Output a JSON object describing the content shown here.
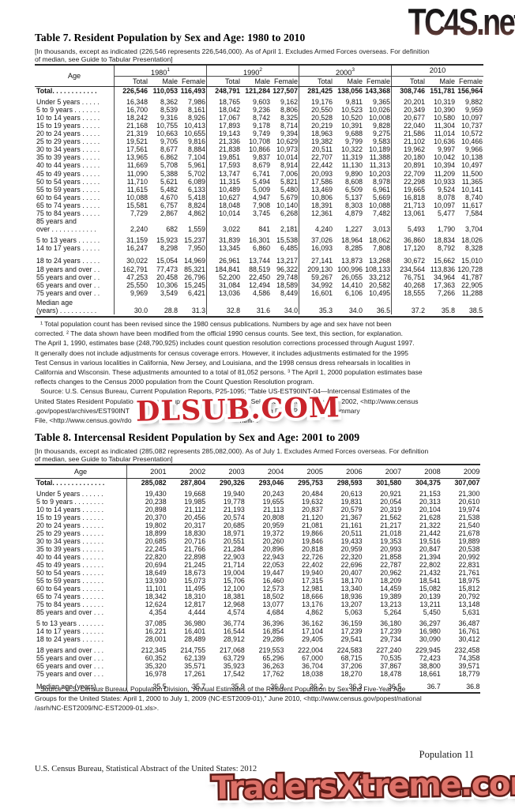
{
  "watermarks": {
    "top": "TC4S.net",
    "middle": "DLSUB.COM",
    "bottom": "TradersXtreme.com"
  },
  "table7": {
    "title": "Table 7. Resident Population by Sex and Age: 1980 to 2010",
    "note_lines": [
      "[In thousands, except as indicated (226,546 represents 226,546,000). As of April 1. Excludes Armed Forces overseas. For definition",
      "of median, see Guide to Tabular Presentation]"
    ],
    "age_header": "Age",
    "year_groups": [
      {
        "year": "1980",
        "sup": "1"
      },
      {
        "year": "1990",
        "sup": "2"
      },
      {
        "year": "2000",
        "sup": "3"
      },
      {
        "year": "2010",
        "sup": ""
      }
    ],
    "sub_headers": [
      "Total",
      "Male",
      "Female"
    ],
    "rows": [
      {
        "label": "Total. . . . . . . . . . . .",
        "bold": true,
        "values": [
          "226,546",
          "110,053",
          "116,493",
          "248,791",
          "121,284",
          "127,507",
          "281,425",
          "138,056",
          "143,368",
          "308,746",
          "151,781",
          "156,964"
        ]
      },
      {
        "label": "Under 5 years . . . . .",
        "gap": "g4",
        "values": [
          "16,348",
          "8,362",
          "7,986",
          "18,765",
          "9,603",
          "9,162",
          "19,176",
          "9,811",
          "9,365",
          "20,201",
          "10,319",
          "9,882"
        ]
      },
      {
        "label": "5 to 9 years . . . . . . .",
        "values": [
          "16,700",
          "8,539",
          "8,161",
          "18,042",
          "9,236",
          "8,806",
          "20,550",
          "10,523",
          "10,026",
          "20,349",
          "10,390",
          "9,959"
        ]
      },
      {
        "label": "10 to 14 years . . . . .",
        "values": [
          "18,242",
          "9,316",
          "8,926",
          "17,067",
          "8,742",
          "8,325",
          "20,528",
          "10,520",
          "10,008",
          "20,677",
          "10,580",
          "10,097"
        ]
      },
      {
        "label": "15 to 19 years . . . . .",
        "values": [
          "21,168",
          "10,755",
          "10,413",
          "17,893",
          "9,178",
          "8,714",
          "20,219",
          "10,391",
          "9,828",
          "22,040",
          "11,304",
          "10,737"
        ]
      },
      {
        "label": "20 to 24 years . . . . .",
        "values": [
          "21,319",
          "10,663",
          "10,655",
          "19,143",
          "9,749",
          "9,394",
          "18,963",
          "9,688",
          "9,275",
          "21,586",
          "11,014",
          "10,572"
        ]
      },
      {
        "label": "25 to 29 years . . . . .",
        "values": [
          "19,521",
          "9,705",
          "9,816",
          "21,336",
          "10,708",
          "10,629",
          "19,382",
          "9,799",
          "9,583",
          "21,102",
          "10,636",
          "10,466"
        ]
      },
      {
        "label": "30 to 34 years . . . . .",
        "values": [
          "17,561",
          "8,677",
          "8,884",
          "21,838",
          "10,866",
          "10,973",
          "20,511",
          "10,322",
          "10,189",
          "19,962",
          "9,997",
          "9,966"
        ]
      },
      {
        "label": "35 to 39 years . . . . .",
        "values": [
          "13,965",
          "6,862",
          "7,104",
          "19,851",
          "9,837",
          "10,014",
          "22,707",
          "11,319",
          "11,388",
          "20,180",
          "10,042",
          "10,138"
        ]
      },
      {
        "label": "40 to 44 years . . . . .",
        "values": [
          "11,669",
          "5,708",
          "5,961",
          "17,593",
          "8,679",
          "8,914",
          "22,442",
          "11,130",
          "11,313",
          "20,891",
          "10,394",
          "10,497"
        ]
      },
      {
        "label": "45 to 49 years . . . . .",
        "values": [
          "11,090",
          "5,388",
          "5,702",
          "13,747",
          "6,741",
          "7,006",
          "20,093",
          "9,890",
          "10,203",
          "22,709",
          "11,209",
          "11,500"
        ]
      },
      {
        "label": "50 to 54 years . . . . .",
        "values": [
          "11,710",
          "5,621",
          "6,089",
          "11,315",
          "5,494",
          "5,821",
          "17,586",
          "8,608",
          "8,978",
          "22,298",
          "10,933",
          "11,365"
        ]
      },
      {
        "label": "55 to 59 years . . . . .",
        "values": [
          "11,615",
          "5,482",
          "6,133",
          "10,489",
          "5,009",
          "5,480",
          "13,469",
          "6,509",
          "6,961",
          "19,665",
          "9,524",
          "10,141"
        ]
      },
      {
        "label": "60 to 64 years . . . . .",
        "values": [
          "10,088",
          "4,670",
          "5,418",
          "10,627",
          "4,947",
          "5,679",
          "10,806",
          "5,137",
          "5,669",
          "16,818",
          "8,078",
          "8,740"
        ]
      },
      {
        "label": "65 to 74 years . . . . .",
        "values": [
          "15,581",
          "6,757",
          "8,824",
          "18,048",
          "7,908",
          "10,140",
          "18,391",
          "8,303",
          "10,088",
          "21,713",
          "10,097",
          "11,617"
        ]
      },
      {
        "label": "75 to 84 years . . . . .",
        "values": [
          "7,729",
          "2,867",
          "4,862",
          "10,014",
          "3,745",
          "6,268",
          "12,361",
          "4,879",
          "7,482",
          "13,061",
          "5,477",
          "7,584"
        ]
      },
      {
        "label": "85 years and",
        "label2": "over . . . . . . . . . . . .",
        "values": [
          "2,240",
          "682",
          "1,559",
          "3,022",
          "841",
          "2,181",
          "4,240",
          "1,227",
          "3,013",
          "5,493",
          "1,790",
          "3,704"
        ]
      },
      {
        "label": "5 to 13 years . . . . . .",
        "gap": "g4",
        "values": [
          "31,159",
          "15,923",
          "15,237",
          "31,839",
          "16,301",
          "15,538",
          "37,026",
          "18,964",
          "18,062",
          "36,860",
          "18,834",
          "18,026"
        ]
      },
      {
        "label": "14 to 17 years . . . . .",
        "values": [
          "16,247",
          "8,298",
          "7,950",
          "13,345",
          "6,860",
          "6,485",
          "16,093",
          "8,285",
          "7,808",
          "17,120",
          "8,792",
          "8,328"
        ]
      },
      {
        "label": "18 to 24 years . . . . .",
        "gap": "g6",
        "values": [
          "30,022",
          "15,054",
          "14,969",
          "26,961",
          "13,744",
          "13,217",
          "27,141",
          "13,873",
          "13,268",
          "30,672",
          "15,662",
          "15,010"
        ]
      },
      {
        "label": "18 years and over . .",
        "values": [
          "162,791",
          "77,473",
          "85,321",
          "184,841",
          "88,519",
          "96,322",
          "209,130",
          "100,996",
          "108,133",
          "234,564",
          "113,836",
          "120,728"
        ]
      },
      {
        "label": "55 years and over . .",
        "values": [
          "47,253",
          "20,458",
          "26,796",
          "52,200",
          "22,450",
          "29,748",
          "59,267",
          "26,055",
          "33,212",
          "76,751",
          "34,964",
          "41,787"
        ]
      },
      {
        "label": "65 years and over . .",
        "values": [
          "25,550",
          "10,306",
          "15,245",
          "31,084",
          "12,494",
          "18,589",
          "34,992",
          "14,410",
          "20,582",
          "40,268",
          "17,363",
          "22,905"
        ]
      },
      {
        "label": "75 years and over . .",
        "values": [
          "9,969",
          "3,549",
          "6,421",
          "13,036",
          "4,586",
          "8,449",
          "16,601",
          "6,106",
          "10,495",
          "18,555",
          "7,266",
          "11,288"
        ]
      },
      {
        "label": "Median age",
        "label2": "(years) . . . . . . . . . .",
        "gap": "g2",
        "values": [
          "30.0",
          "28.8",
          "31.3",
          "32.8",
          "31.6",
          "34.0",
          "35.3",
          "34.0",
          "36.5",
          "37.2",
          "35.8",
          "38.5"
        ]
      }
    ],
    "footnote_lines": [
      "   ¹ Total population count has been revised since the 1980 census publications. Numbers by age and sex have not been",
      "corrected. ² The data shown have been modified from the official 1990 census counts. See text, this section, for explanation.",
      "The April 1, 1990, estimates base (248,790,925) includes count question resolution corrections processed through August 1997.",
      "It generally does not include adjustments for census coverage errors. However, it includes adjustments estimated for the 1995",
      "Test Census in various localities in California, New Jersey, and Louisiana, and the 1998 census dress rehearsals in localities in",
      "California and Wisconsin. These adjustments amounted to a total of 81,052 persons. ³ The April 1, 2000 population estimates base",
      "reflects changes to the Census 2000 population from the Count Question Resolution program.",
      "   Source: U.S. Census Bureau, Current Population Reports, P25-1095; “Table US-EST90INT-04—Intercensal Estimates of the",
      "United States Resident Population by Age Groups and Sex, 1990–2000: Selected Months,” September 2002, <http://www.census",
      ".gov/popest/archives/EST90INT                                                                           g Data (P.L. 94-171) Summary",
      "File, <http://www.census.gov/rdo                                                          html>."
    ]
  },
  "table8": {
    "title": "Table 8. Intercensal Resident Population by Sex and Age: 2001 to 2009",
    "note_lines": [
      "[In thousands, except as indicated (285,082 represents 285,082,000). As of July 1. Excludes Armed Forces overseas. For definition",
      "of median, see Guide to Tabular Presentation]"
    ],
    "age_header": "Age",
    "years": [
      "2001",
      "2002",
      "2003",
      "2004",
      "2005",
      "2006",
      "2007",
      "2008",
      "2009"
    ],
    "rows": [
      {
        "label": "Total. . . . . . . . . . . . . .",
        "bold": true,
        "values": [
          "285,082",
          "287,804",
          "290,326",
          "293,046",
          "295,753",
          "298,593",
          "301,580",
          "304,375",
          "307,007"
        ]
      },
      {
        "label": "Under 5 years . . . . . .",
        "gap": "g4",
        "values": [
          "19,430",
          "19,668",
          "19,940",
          "20,243",
          "20,484",
          "20,613",
          "20,921",
          "21,153",
          "21,300"
        ]
      },
      {
        "label": "5 to 9 years . . . . . . . .",
        "values": [
          "20,238",
          "19,985",
          "19,778",
          "19,655",
          "19,632",
          "19,831",
          "20,054",
          "20,313",
          "20,610"
        ]
      },
      {
        "label": "10 to 14 years . . . . . .",
        "values": [
          "20,898",
          "21,112",
          "21,193",
          "21,113",
          "20,837",
          "20,579",
          "20,319",
          "20,104",
          "19,974"
        ]
      },
      {
        "label": "15 to 19 years . . . . . .",
        "values": [
          "20,370",
          "20,456",
          "20,574",
          "20,808",
          "21,120",
          "21,367",
          "21,562",
          "21,628",
          "21,538"
        ]
      },
      {
        "label": "20 to 24 years . . . . . .",
        "values": [
          "19,802",
          "20,317",
          "20,685",
          "20,959",
          "21,081",
          "21,161",
          "21,217",
          "21,322",
          "21,540"
        ]
      },
      {
        "label": "25 to 29 years . . . . . .",
        "values": [
          "18,899",
          "18,830",
          "18,971",
          "19,372",
          "19,866",
          "20,511",
          "21,018",
          "21,442",
          "21,678"
        ]
      },
      {
        "label": "30 to 34 years . . . . . .",
        "values": [
          "20,685",
          "20,716",
          "20,551",
          "20,260",
          "19,846",
          "19,433",
          "19,353",
          "19,516",
          "19,889"
        ]
      },
      {
        "label": "35 to 39 years . . . . . .",
        "values": [
          "22,245",
          "21,766",
          "21,284",
          "20,896",
          "20,818",
          "20,959",
          "20,993",
          "20,847",
          "20,538"
        ]
      },
      {
        "label": "40 to 44 years . . . . . .",
        "values": [
          "22,820",
          "22,898",
          "22,903",
          "22,943",
          "22,726",
          "22,320",
          "21,858",
          "21,394",
          "20,992"
        ]
      },
      {
        "label": "45 to 49 years . . . . . .",
        "values": [
          "20,694",
          "21,245",
          "21,714",
          "22,053",
          "22,402",
          "22,696",
          "22,787",
          "22,802",
          "22,831"
        ]
      },
      {
        "label": "50 to 54 years . . . . . .",
        "values": [
          "18,649",
          "18,673",
          "19,004",
          "19,447",
          "19,940",
          "20,407",
          "20,962",
          "21,432",
          "21,761"
        ]
      },
      {
        "label": "55 to 59 years . . . . . .",
        "values": [
          "13,930",
          "15,073",
          "15,706",
          "16,460",
          "17,315",
          "18,170",
          "18,209",
          "18,541",
          "18,975"
        ]
      },
      {
        "label": "60 to 64 years . . . . . .",
        "values": [
          "11,101",
          "11,495",
          "12,100",
          "12,573",
          "12,981",
          "13,340",
          "14,459",
          "15,082",
          "15,812"
        ]
      },
      {
        "label": "65 to 74 years . . . . . .",
        "values": [
          "18,342",
          "18,310",
          "18,381",
          "18,502",
          "18,666",
          "18,936",
          "19,389",
          "20,139",
          "20,792"
        ]
      },
      {
        "label": "75 to 84 years . . . . . .",
        "values": [
          "12,624",
          "12,817",
          "12,968",
          "13,077",
          "13,176",
          "13,207",
          "13,213",
          "13,211",
          "13,148"
        ]
      },
      {
        "label": "85 years and over . . .",
        "values": [
          "4,354",
          "4,444",
          "4,574",
          "4,684",
          "4,862",
          "5,063",
          "5,264",
          "5,450",
          "5,631"
        ]
      },
      {
        "label": "5 to 13 years . . . . . . .",
        "gap": "g4",
        "values": [
          "37,085",
          "36,980",
          "36,774",
          "36,396",
          "36,162",
          "36,159",
          "36,180",
          "36,297",
          "36,487"
        ]
      },
      {
        "label": "14 to 17 years . . . . . .",
        "values": [
          "16,221",
          "16,401",
          "16,544",
          "16,854",
          "17,104",
          "17,239",
          "17,239",
          "16,980",
          "16,761"
        ]
      },
      {
        "label": "18 to 24 years . . . . . .",
        "values": [
          "28,001",
          "28,489",
          "28,912",
          "29,286",
          "29,405",
          "29,541",
          "29,734",
          "30,090",
          "30,412"
        ]
      },
      {
        "label": "18 years and over . . .",
        "gap": "g4",
        "values": [
          "212,345",
          "214,755",
          "217,068",
          "219,553",
          "222,004",
          "224,583",
          "227,240",
          "229,945",
          "232,458"
        ]
      },
      {
        "label": "55 years and over . . .",
        "values": [
          "60,352",
          "62,139",
          "63,729",
          "65,296",
          "67,000",
          "68,715",
          "70,535",
          "72,423",
          "74,358"
        ]
      },
      {
        "label": "65 years and over . . .",
        "values": [
          "35,320",
          "35,571",
          "35,923",
          "36,263",
          "36,704",
          "37,206",
          "37,867",
          "38,800",
          "39,571"
        ]
      },
      {
        "label": "75 years and over . . .",
        "values": [
          "16,978",
          "17,261",
          "17,542",
          "17,762",
          "18,038",
          "18,270",
          "18,478",
          "18,661",
          "18,779"
        ]
      },
      {
        "label": "Median age (years) . .",
        "gap": "g6",
        "values": [
          "35.5",
          "35.7",
          "35.9",
          "36.0",
          "36.2",
          "36.3",
          "36.5",
          "36.7",
          "36.8"
        ]
      }
    ],
    "source_lines": [
      "   Source: U.S. Census Bureau, Population Division, “Annual Estimates of the Resident Population by Sex and Five-Year Age",
      "Groups for the United States: April 1, 2000 to July 1, 2009 (NC-EST2009-01),” June 2010, <http://www.census.gov/popest/national",
      "/asrh/NC-EST2009/NC-EST2009-01.xls>."
    ]
  },
  "footer": {
    "page_label": "Population  11",
    "bureau_line": "U.S. Census Bureau, Statistical Abstract of the United States: 2012"
  }
}
